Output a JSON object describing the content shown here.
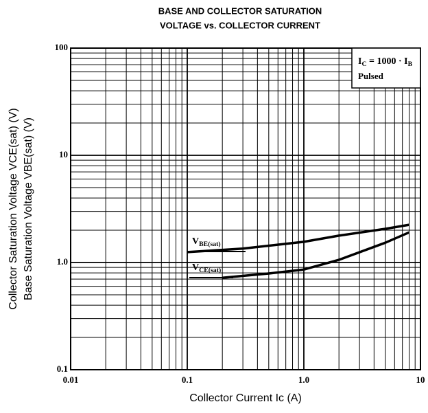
{
  "chart_data": {
    "type": "line",
    "title": [
      "BASE AND COLLECTOR SATURATION",
      "VOLTAGE vs. COLLECTOR CURRENT"
    ],
    "xlabel": "Collector Current  Ic  (A)",
    "ylabel": [
      "Collector Saturation Voltage  VCE(sat)  (V)",
      "Base Saturation Voltage  VBE(sat)  (V)"
    ],
    "annotation": [
      "IC = 1000 · IB",
      "Pulsed"
    ],
    "log_x": true,
    "log_y": true,
    "grid": true,
    "xlim": [
      0.01,
      10
    ],
    "ylim": [
      0.1,
      100
    ],
    "xticks": [
      0.01,
      0.1,
      {
        "value": 1,
        "label": "1.0"
      },
      10
    ],
    "yticks": [
      0.1,
      {
        "value": 1,
        "label": "1.0"
      },
      10,
      100
    ],
    "xminorticks": [
      0.02,
      0.03,
      0.04,
      0.05,
      0.06,
      0.07,
      0.08,
      0.09,
      0.2,
      0.3,
      0.4,
      0.5,
      0.6,
      0.7,
      0.8,
      0.9,
      2,
      3,
      4,
      5,
      6,
      7,
      8,
      9
    ],
    "yminorticks": [
      0.2,
      0.3,
      0.4,
      0.5,
      0.6,
      0.7,
      0.8,
      0.9,
      2,
      3,
      4,
      5,
      6,
      7,
      8,
      9,
      20,
      30,
      40,
      50,
      60,
      70,
      80,
      90
    ],
    "series": [
      {
        "name": "VBE(sat)",
        "color": "#000000",
        "x": [
          0.1,
          0.3,
          1,
          2,
          5,
          8
        ],
        "values": [
          1.25,
          1.35,
          1.56,
          1.78,
          2.06,
          2.25
        ]
      },
      {
        "name": "VCE(sat)",
        "color": "#000000",
        "x": [
          0.2,
          0.5,
          1,
          2,
          5,
          8
        ],
        "values": [
          0.72,
          0.79,
          0.86,
          1.06,
          1.53,
          1.91
        ]
      }
    ]
  }
}
